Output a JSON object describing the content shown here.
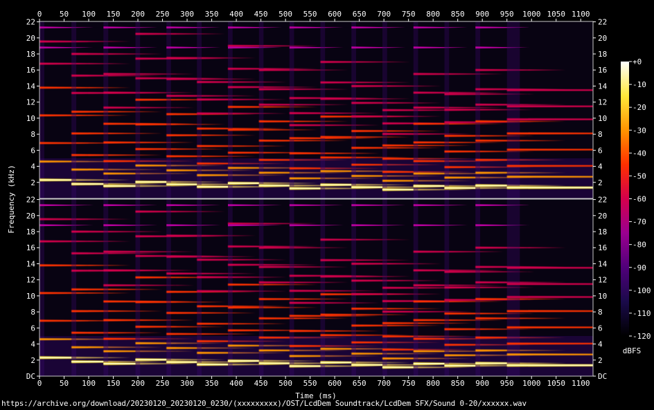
{
  "chart_data": {
    "type": "heatmap",
    "title": "",
    "xlabel": "Time (ms)",
    "ylabel": "Frequency (kHz)",
    "x_ticks": [
      0,
      50,
      100,
      150,
      200,
      250,
      300,
      350,
      400,
      450,
      500,
      550,
      600,
      650,
      700,
      750,
      800,
      850,
      900,
      950,
      1000,
      1050,
      1100
    ],
    "xlim": [
      0,
      1125
    ],
    "channels": [
      {
        "y_ticks": [
          "22",
          "20",
          "18",
          "16",
          "14",
          "12",
          "10",
          "8",
          "6",
          "4",
          "2"
        ]
      },
      {
        "y_ticks": [
          "22",
          "20",
          "18",
          "16",
          "14",
          "12",
          "10",
          "8",
          "6",
          "4",
          "2",
          "DC"
        ]
      }
    ],
    "ylim_khz": [
      0,
      22.05
    ],
    "colorbar": {
      "label": "dBFS",
      "ticks": [
        "+0",
        "-10",
        "-20",
        "-30",
        "-40",
        "-50",
        "-60",
        "-70",
        "-80",
        "-90",
        "-100",
        "-110",
        "-120"
      ],
      "range_db": [
        -120,
        0
      ],
      "colors": [
        "#000000",
        "#1a0a4a",
        "#50007a",
        "#9a0090",
        "#d4004c",
        "#ff3000",
        "#ff9400",
        "#ffe83a",
        "#ffffff"
      ]
    },
    "notes": [
      {
        "start_ms": 0,
        "f0_khz": 2.3
      },
      {
        "start_ms": 65,
        "f0_khz": 1.8
      },
      {
        "start_ms": 130,
        "f0_khz": 1.55
      },
      {
        "start_ms": 195,
        "f0_khz": 2.05
      },
      {
        "start_ms": 258,
        "f0_khz": 1.75
      },
      {
        "start_ms": 320,
        "f0_khz": 1.45
      },
      {
        "start_ms": 383,
        "f0_khz": 1.9
      },
      {
        "start_ms": 446,
        "f0_khz": 1.6
      },
      {
        "start_ms": 508,
        "f0_khz": 1.25
      },
      {
        "start_ms": 571,
        "f0_khz": 1.7
      },
      {
        "start_ms": 634,
        "f0_khz": 1.4
      },
      {
        "start_ms": 697,
        "f0_khz": 1.1
      },
      {
        "start_ms": 760,
        "f0_khz": 1.55
      },
      {
        "start_ms": 823,
        "f0_khz": 1.3
      },
      {
        "start_ms": 886,
        "f0_khz": 1.6
      },
      {
        "start_ms": 950,
        "f0_khz": 1.35
      }
    ]
  },
  "footer_text": "https://archive.org/download/20230120_20230120_0230/(xxxxxxxxx)/OST/LcdDem Soundtrack/LcdDem SFX/Sound 0-20/xxxxxx.wav"
}
